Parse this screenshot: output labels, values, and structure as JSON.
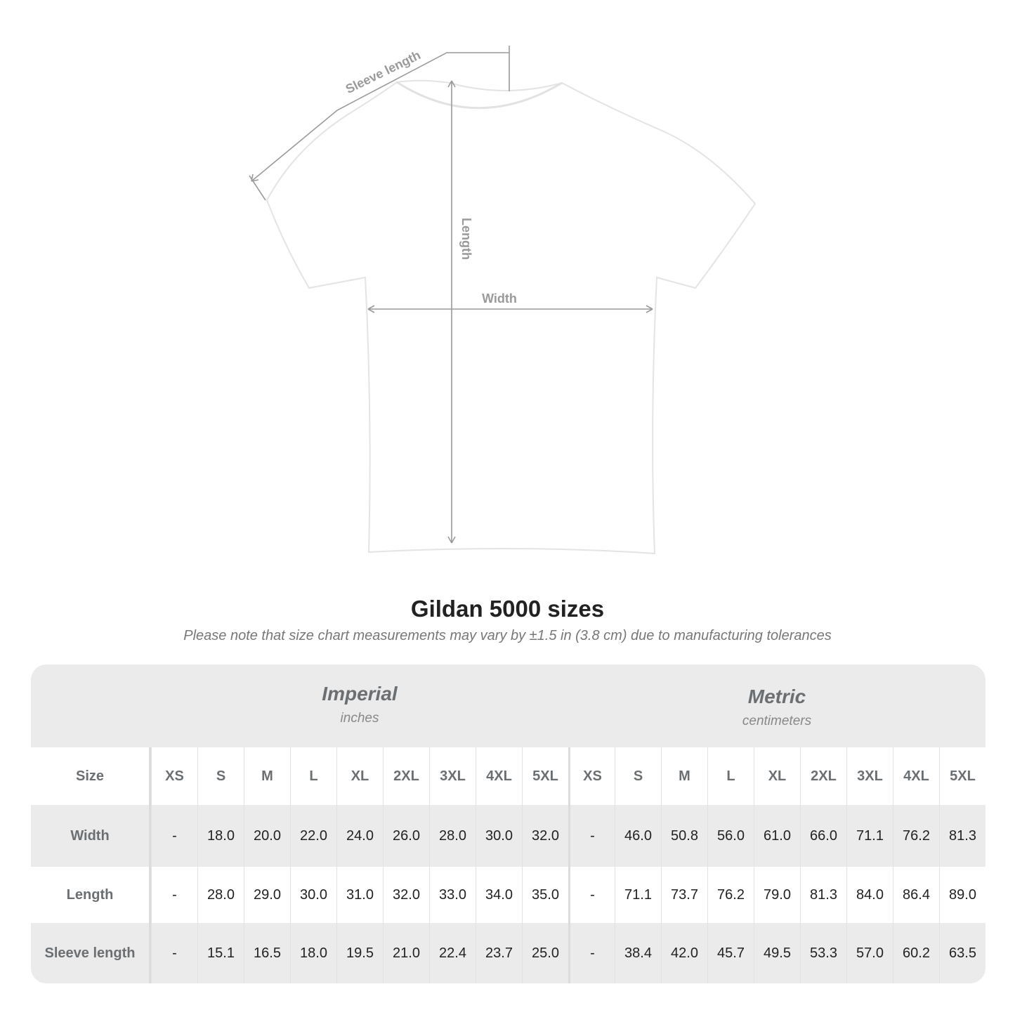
{
  "diagram": {
    "labels": {
      "sleeve": "Sleeve length",
      "length": "Length",
      "width": "Width"
    },
    "colors": {
      "arrow": "#9a9a9a",
      "shirt": "#ffffff",
      "shirt_shadow": "#ececec"
    }
  },
  "title": "Gildan 5000 sizes",
  "subtitle": "Please note that size chart measurements may vary by ±1.5 in (3.8 cm) due to manufacturing tolerances",
  "table": {
    "imperial": {
      "name": "Imperial",
      "unit": "inches"
    },
    "metric": {
      "name": "Metric",
      "unit": "centimeters"
    },
    "size_label": "Size",
    "sizes": [
      "XS",
      "S",
      "M",
      "L",
      "XL",
      "2XL",
      "3XL",
      "4XL",
      "5XL"
    ],
    "rows": [
      {
        "label": "Width",
        "imperial": [
          "-",
          "18.0",
          "20.0",
          "22.0",
          "24.0",
          "26.0",
          "28.0",
          "30.0",
          "32.0"
        ],
        "metric": [
          "-",
          "46.0",
          "50.8",
          "56.0",
          "61.0",
          "66.0",
          "71.1",
          "76.2",
          "81.3"
        ]
      },
      {
        "label": "Length",
        "imperial": [
          "-",
          "28.0",
          "29.0",
          "30.0",
          "31.0",
          "32.0",
          "33.0",
          "34.0",
          "35.0"
        ],
        "metric": [
          "-",
          "71.1",
          "73.7",
          "76.2",
          "79.0",
          "81.3",
          "84.0",
          "86.4",
          "89.0"
        ]
      },
      {
        "label": "Sleeve length",
        "imperial": [
          "-",
          "15.1",
          "16.5",
          "18.0",
          "19.5",
          "21.0",
          "22.4",
          "23.7",
          "25.0"
        ],
        "metric": [
          "-",
          "38.4",
          "42.0",
          "45.7",
          "49.5",
          "53.3",
          "57.0",
          "60.2",
          "63.5"
        ]
      }
    ],
    "colors": {
      "band": "#ebebeb",
      "header_text": "#6b6f72"
    }
  }
}
